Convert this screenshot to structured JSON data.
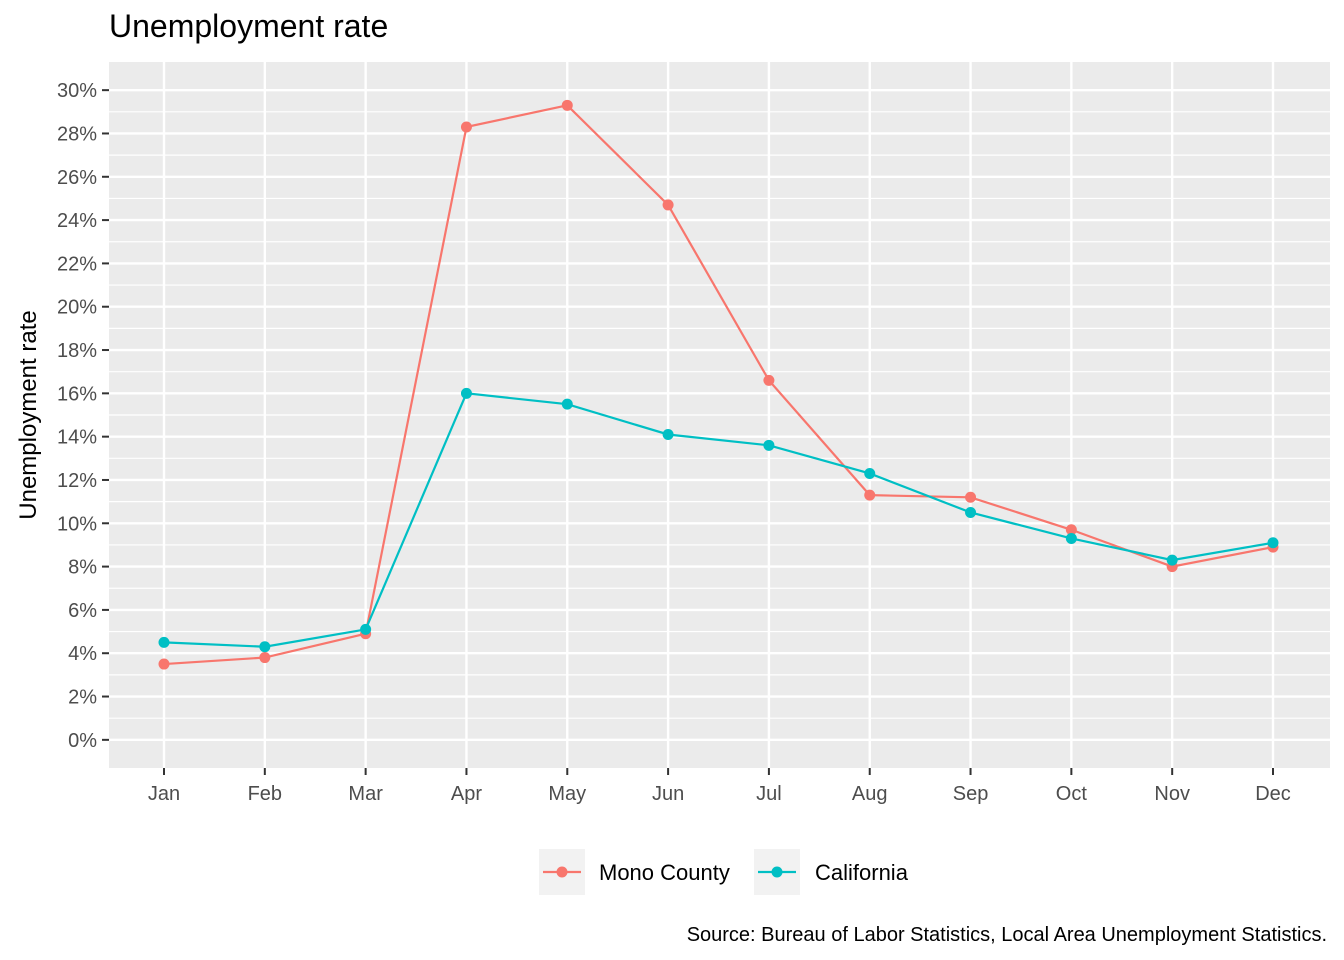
{
  "chart_data": {
    "type": "line",
    "title": "Unemployment rate",
    "ylabel": "Unemployment rate",
    "xlabel": "",
    "categories": [
      "Jan",
      "Feb",
      "Mar",
      "Apr",
      "May",
      "Jun",
      "Jul",
      "Aug",
      "Sep",
      "Oct",
      "Nov",
      "Dec"
    ],
    "ylim": [
      -0.013,
      0.313
    ],
    "yticks": [
      0,
      0.02,
      0.04,
      0.06,
      0.08,
      0.1,
      0.12,
      0.14,
      0.16,
      0.18,
      0.2,
      0.22,
      0.24,
      0.26,
      0.28,
      0.3
    ],
    "ytick_labels": [
      "0%",
      "2%",
      "4%",
      "6%",
      "8%",
      "10%",
      "12%",
      "14%",
      "16%",
      "18%",
      "20%",
      "22%",
      "24%",
      "26%",
      "28%",
      "30%"
    ],
    "grid": true,
    "legend_position": "bottom",
    "caption": "Source: Bureau of Labor Statistics, Local Area Unemployment Statistics.",
    "series": [
      {
        "name": "Mono County",
        "color": "#F8766D",
        "values": [
          0.035,
          0.038,
          0.049,
          0.283,
          0.293,
          0.247,
          0.166,
          0.113,
          0.112,
          0.097,
          0.08,
          0.089
        ]
      },
      {
        "name": "California",
        "color": "#00BFC4",
        "values": [
          0.045,
          0.043,
          0.051,
          0.16,
          0.155,
          0.141,
          0.136,
          0.123,
          0.105,
          0.093,
          0.083,
          0.091
        ]
      }
    ]
  }
}
